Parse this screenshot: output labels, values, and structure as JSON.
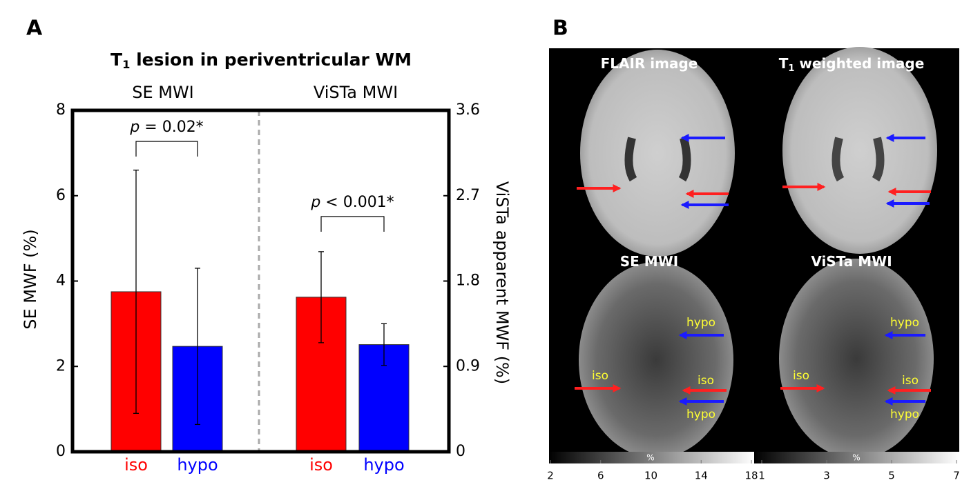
{
  "panel_labels": [
    "A",
    "B"
  ],
  "chart_data": {
    "type": "bar",
    "title": [
      "T",
      "1",
      " lesion in periventricular WM"
    ],
    "ylabel": "SE MWF (%)",
    "y2label": "ViSTa apparent MWF (%)",
    "ylim": [
      0,
      8
    ],
    "yticks": [
      0,
      2,
      4,
      6,
      8
    ],
    "y2lim": [
      0,
      3.6
    ],
    "y2ticks": [
      0,
      0.9,
      1.8,
      2.7,
      3.6
    ],
    "groups": [
      {
        "name": "SE MWI",
        "axis": "y",
        "categories": [
          "iso",
          "hypo"
        ],
        "colors": [
          "#ff0000",
          "#0000ff"
        ],
        "values": [
          3.75,
          2.47
        ],
        "errors": [
          2.85,
          1.83
        ],
        "annotation": [
          "p",
          " = 0.02*"
        ]
      },
      {
        "name": "ViSTa MWI",
        "axis": "y2",
        "categories": [
          "iso",
          "hypo"
        ],
        "colors": [
          "#ff0000",
          "#0000ff"
        ],
        "values": [
          1.63,
          1.13
        ],
        "errors": [
          0.48,
          0.22
        ],
        "annotation": [
          "p",
          " < 0.001*"
        ]
      }
    ]
  },
  "images": [
    {
      "title": [
        "FLAIR image"
      ]
    },
    {
      "title": [
        "T",
        "1",
        " weighted image"
      ]
    },
    {
      "title": [
        "SE MWI"
      ],
      "annotations": [
        "hypo",
        "iso",
        "iso",
        "hypo"
      ]
    },
    {
      "title": [
        "ViSTa MWI"
      ],
      "annotations": [
        "hypo",
        "iso",
        "iso",
        "hypo"
      ]
    }
  ],
  "colorbars": [
    {
      "unit": "%",
      "ticks": [
        2,
        6,
        10,
        14,
        18
      ]
    },
    {
      "unit": "%",
      "ticks": [
        1,
        3,
        5,
        7
      ]
    }
  ]
}
